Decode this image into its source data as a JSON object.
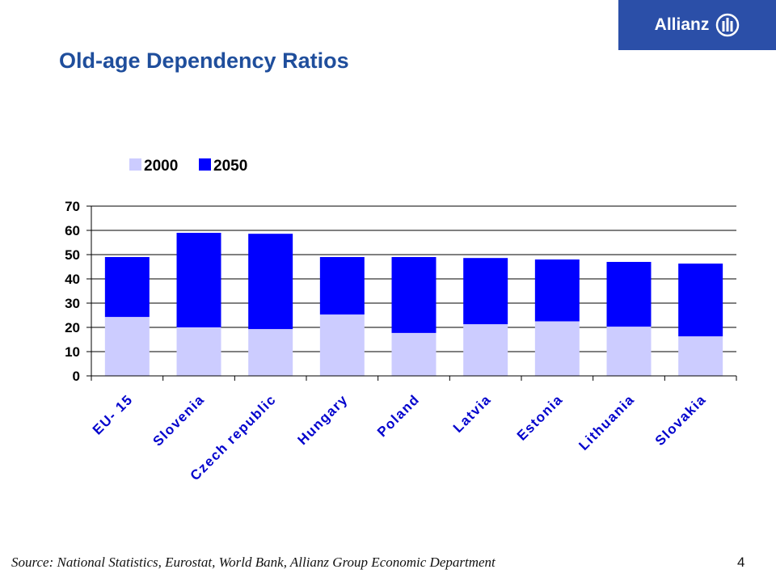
{
  "header": {
    "logo_text": "Allianz",
    "logo_color": "#2b4fa8",
    "title": "Old-age Dependency Ratios"
  },
  "chart_data": {
    "type": "bar",
    "stacked": true,
    "categories": [
      "EU- 15",
      "Slovenia",
      "Czech republic",
      "Hungary",
      "Poland",
      "Latvia",
      "Estonia",
      "Lithuania",
      "Slovakia"
    ],
    "series": [
      {
        "name": "2000",
        "color": "#ccccff",
        "values": [
          24.3,
          20,
          19.3,
          25.3,
          17.7,
          21.3,
          22.5,
          20.3,
          16.3
        ]
      },
      {
        "name": "2050",
        "color": "#0000ff",
        "values": [
          24.7,
          39,
          39.3,
          23.7,
          31.3,
          27.3,
          25.5,
          26.7,
          30
        ]
      }
    ],
    "ylim": [
      0,
      70
    ],
    "yticks": [
      0,
      10,
      20,
      30,
      40,
      50,
      60,
      70
    ],
    "grid": true,
    "legend": "top-left"
  },
  "footer": {
    "source": "Source: National Statistics, Eurostat, World Bank, Allianz Group Economic Department",
    "page_number": "4"
  }
}
